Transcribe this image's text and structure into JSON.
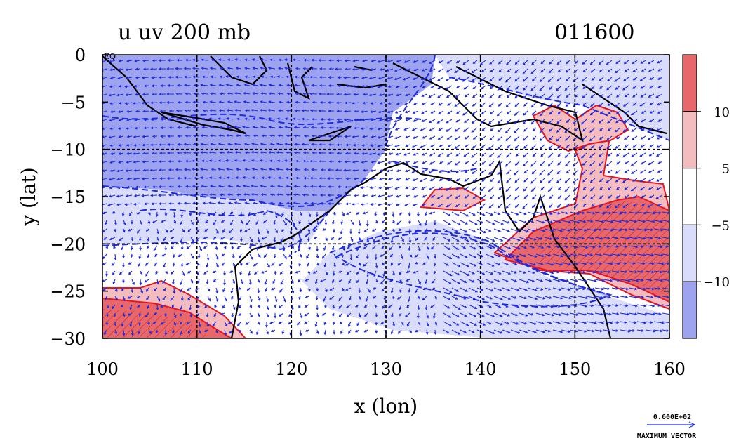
{
  "chart_data": {
    "type": "heatmap",
    "title": "u uv 200 mb",
    "date_label": "011600",
    "xlabel": "x (lon)",
    "ylabel": "y (lat)",
    "xlim": [
      100,
      160
    ],
    "ylim": [
      -30,
      0
    ],
    "x_ticks": [
      "100",
      "110",
      "120",
      "130",
      "140",
      "150",
      "160"
    ],
    "y_ticks": [
      "0",
      "−5",
      "−10",
      "−15",
      "−20",
      "−25",
      "−30"
    ],
    "grid": true,
    "corner_label": "EQ",
    "colorbar": {
      "levels": [
        "10",
        "5",
        "−5",
        "−10"
      ],
      "colors": [
        "#e8676b",
        "#f4bcbf",
        "#ffffff",
        "#d9dcfb",
        "#9ea3ef"
      ]
    },
    "vector_legend": {
      "magnitude": "0.600E+02",
      "caption": "MAXIMUM VECTOR"
    },
    "colors": {
      "strong_positive": "#e8676b",
      "weak_positive": "#f4bcbf",
      "weak_negative": "#d9dcfb",
      "strong_negative": "#9ea3ef",
      "positive_contour": "#e8141e",
      "negative_contour": "#1e2be0",
      "vectors": "#1e2be0"
    }
  }
}
